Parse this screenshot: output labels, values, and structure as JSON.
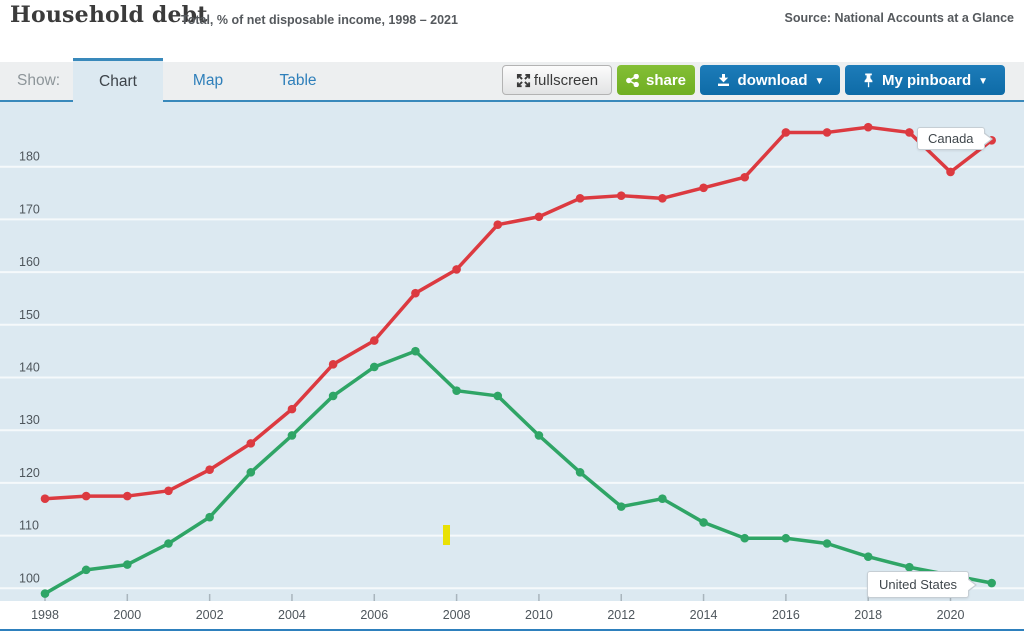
{
  "header": {
    "title": "Household debt",
    "subtitle": "Total, % of net disposable income, 1998 – 2021",
    "source": "Source: National Accounts at a Glance"
  },
  "tabbar": {
    "show_label": "Show:",
    "tabs": [
      {
        "label": "Chart",
        "active": true
      },
      {
        "label": "Map",
        "active": false
      },
      {
        "label": "Table",
        "active": false
      }
    ],
    "buttons": {
      "fullscreen": "fullscreen",
      "share": "share",
      "download": "download",
      "pinboard": "My pinboard",
      "caret": "▼"
    }
  },
  "colors": {
    "accent_blue": "#2e7fba",
    "tab_border_blue": "#3989bb",
    "bottom_border_blue": "#2e80bd",
    "plot_bg": "#dce9f1",
    "gridline": "#f5f9fb",
    "axis_text": "#4e565c",
    "tick": "#a9b5bd",
    "canada_red": "#dc3a40",
    "us_green": "#2fa566",
    "yellow_artifact": "#e9e104",
    "share_green": "#79b52a",
    "button_blue": "#1375b2"
  },
  "chart_data": {
    "type": "line",
    "title": "Household debt",
    "subtitle": "Total, % of net disposable income, 1998 - 2021",
    "xlabel": "",
    "ylabel": "% of net disposable income",
    "grid": true,
    "legend_position": "end-of-line tooltips",
    "ylim": [
      95,
      194
    ],
    "yticks": [
      100,
      110,
      120,
      130,
      140,
      150,
      160,
      170,
      180
    ],
    "x": [
      1998,
      1999,
      2000,
      2001,
      2002,
      2003,
      2004,
      2005,
      2006,
      2007,
      2008,
      2009,
      2010,
      2011,
      2012,
      2013,
      2014,
      2015,
      2016,
      2017,
      2018,
      2019,
      2020,
      2021
    ],
    "x_tick_labels": [
      "1998",
      "2000",
      "2002",
      "2004",
      "2006",
      "2008",
      "2010",
      "2012",
      "2014",
      "2016",
      "2018",
      "2020"
    ],
    "series": [
      {
        "name": "Canada",
        "color": "#dc3a40",
        "values": [
          117,
          117.5,
          117.5,
          118.5,
          122.5,
          127.5,
          134,
          142.5,
          147,
          156,
          160.5,
          169,
          170.5,
          174,
          174.5,
          174,
          176,
          178,
          186.5,
          186.5,
          187.5,
          186.5,
          179,
          185
        ]
      },
      {
        "name": "United States",
        "color": "#2fa566",
        "values": [
          99,
          103.5,
          104.5,
          108.5,
          113.5,
          122,
          129,
          136.5,
          142,
          145,
          137.5,
          136.5,
          129,
          122,
          115.5,
          117,
          112.5,
          109.5,
          109.5,
          108.5,
          106,
          104,
          102.5,
          101
        ]
      }
    ]
  },
  "tooltips": {
    "canada": "Canada",
    "united_states": "United States"
  }
}
